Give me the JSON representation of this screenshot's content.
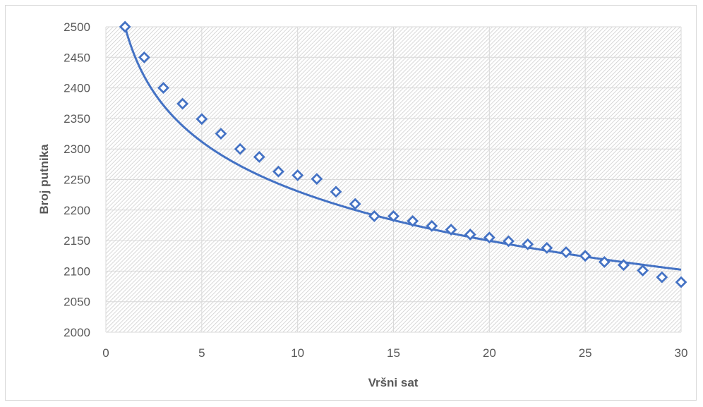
{
  "chart_data": {
    "type": "scatter",
    "xlabel": "Vršni sat",
    "ylabel": "Broj putnika",
    "xlim": [
      0,
      30
    ],
    "ylim": [
      2000,
      2500
    ],
    "xticks": [
      "0",
      "5",
      "10",
      "15",
      "20",
      "25",
      "30"
    ],
    "yticks": [
      "2000",
      "2050",
      "2100",
      "2150",
      "2200",
      "2250",
      "2300",
      "2350",
      "2400",
      "2450",
      "2500"
    ],
    "grid": true,
    "legend": "none",
    "marker": "diamond",
    "series": [
      {
        "x": [
          1,
          2,
          3,
          4,
          5,
          6,
          7,
          8,
          9,
          10,
          11,
          12,
          13,
          14,
          15,
          16,
          17,
          18,
          19,
          20,
          21,
          22,
          23,
          24,
          25,
          26,
          27,
          28,
          29,
          30
        ],
        "values": [
          2500,
          2450,
          2400,
          2374,
          2349,
          2325,
          2300,
          2287,
          2263,
          2257,
          2251,
          2230,
          2210,
          2190,
          2190,
          2182,
          2174,
          2168,
          2160,
          2155,
          2149,
          2144,
          2138,
          2131,
          2125,
          2115,
          2110,
          2101,
          2090,
          2082
        ]
      }
    ],
    "trendline": {
      "type": "logarithmic",
      "a": 2500,
      "b": -116.9
    },
    "colors": {
      "series": "#4472c4",
      "grid": "#d9d9d9",
      "text": "#595959"
    }
  }
}
